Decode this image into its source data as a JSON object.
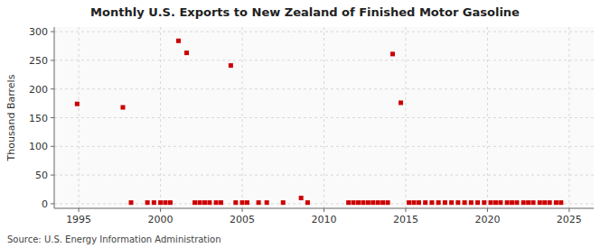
{
  "chart_data": {
    "type": "scatter",
    "title": "Monthly U.S. Exports to New Zealand of Finished Motor Gasoline",
    "ylabel": "Thousand Barrels",
    "source": "Source: U.S. Energy Information Administration",
    "color": "#cc0000",
    "marker": "square",
    "grid": true,
    "xlim": [
      1993.5,
      2026.5
    ],
    "ylim": [
      -8,
      308
    ],
    "xticks": [
      1995,
      2000,
      2005,
      2010,
      2015,
      2020,
      2025
    ],
    "yticks": [
      0,
      50,
      100,
      150,
      200,
      250,
      300
    ],
    "x": [
      1994.9,
      1997.7,
      1998.2,
      1999.2,
      1999.6,
      2000.0,
      2000.3,
      2000.6,
      2001.1,
      2001.6,
      2002.1,
      2002.4,
      2002.7,
      2003.0,
      2003.4,
      2003.7,
      2004.3,
      2004.6,
      2005.0,
      2005.3,
      2006.0,
      2006.5,
      2007.5,
      2008.6,
      2009.0,
      2011.5,
      2011.8,
      2012.1,
      2012.4,
      2012.7,
      2013.0,
      2013.3,
      2013.6,
      2013.9,
      2014.2,
      2014.7,
      2015.2,
      2015.5,
      2015.8,
      2016.2,
      2016.6,
      2017.0,
      2017.4,
      2017.8,
      2018.2,
      2018.6,
      2019.0,
      2019.4,
      2019.8,
      2020.2,
      2020.5,
      2020.8,
      2021.2,
      2021.5,
      2021.8,
      2022.2,
      2022.5,
      2022.8,
      2023.2,
      2023.5,
      2023.8,
      2024.2,
      2024.5
    ],
    "values": [
      174,
      168,
      2,
      2,
      2,
      2,
      2,
      2,
      284,
      263,
      2,
      2,
      2,
      2,
      2,
      2,
      241,
      2,
      2,
      2,
      2,
      2,
      2,
      10,
      2,
      2,
      2,
      2,
      2,
      2,
      2,
      2,
      2,
      2,
      261,
      176,
      2,
      2,
      2,
      2,
      2,
      2,
      2,
      2,
      2,
      2,
      2,
      2,
      2,
      2,
      2,
      2,
      2,
      2,
      2,
      2,
      2,
      2,
      2,
      2,
      2,
      2,
      2
    ]
  }
}
